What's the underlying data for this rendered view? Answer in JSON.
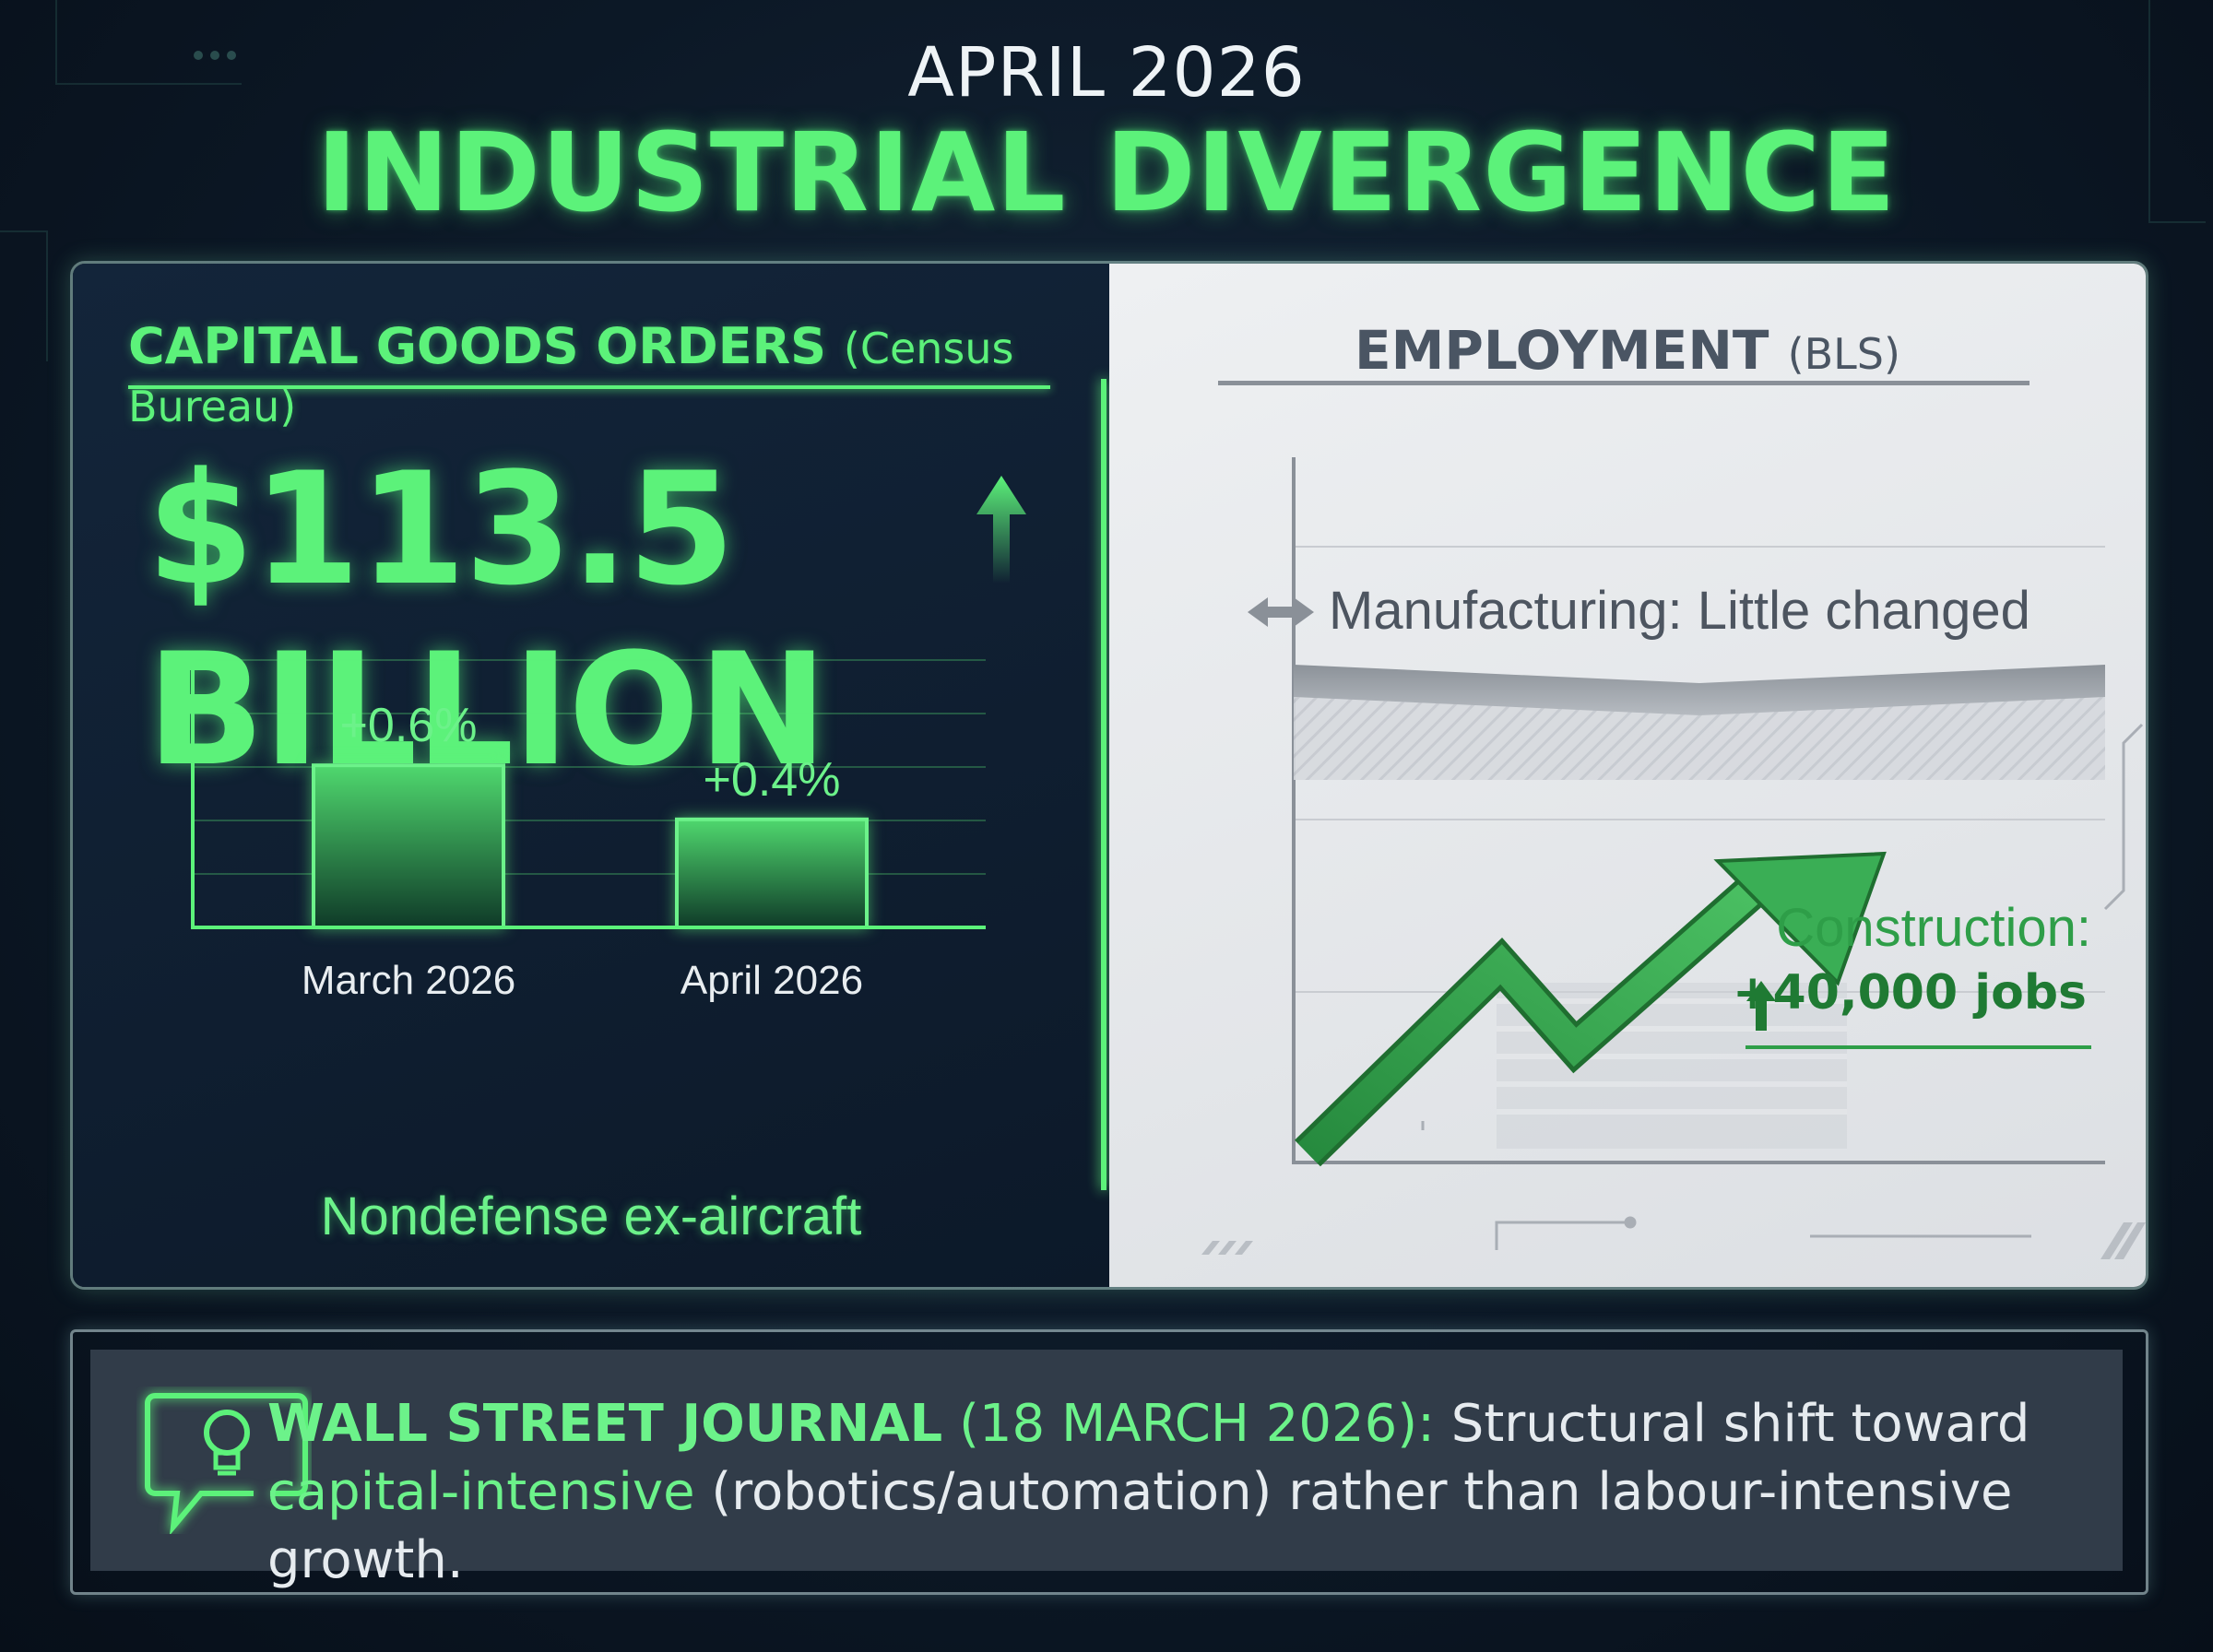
{
  "header": {
    "date": "APRIL 2026",
    "title": "INDUSTRIAL DIVERGENCE"
  },
  "left_panel": {
    "title": "CAPITAL GOODS ORDERS",
    "source": "(Census Bureau)",
    "headline_value": "$113.5 BILLION",
    "footer": "Nondefense ex-aircraft"
  },
  "right_panel": {
    "title": "EMPLOYMENT",
    "source": "(BLS)",
    "manufacturing_label": "Manufacturing: Little changed",
    "construction_label": "Construction:",
    "construction_value": "+40,000 jobs"
  },
  "bottom": {
    "source": "WALL STREET JOURNAL",
    "date": "(18 MARCH 2026):",
    "text_1": " Structural shift toward",
    "highlight": "capital-intensive",
    "text_2": " (robotics/automation) rather than labour-intensive growth."
  },
  "colors": {
    "accent": "#5cf27a",
    "background": "#0c1826",
    "light_panel": "#e6e8eb",
    "construction": "#2e9e48",
    "manufacturing": "#7d848c"
  },
  "chart_data": [
    {
      "type": "bar",
      "categories": [
        "March 2026",
        "April 2026"
      ],
      "values": [
        0.6,
        0.4
      ],
      "data_labels": [
        "+0.6%",
        "+0.4%"
      ],
      "ylim": [
        0,
        1.0
      ],
      "grid": true
    },
    {
      "type": "line",
      "annotations": [
        "Manufacturing: Little changed",
        "Construction: +40,000 jobs"
      ],
      "grid": true
    }
  ]
}
